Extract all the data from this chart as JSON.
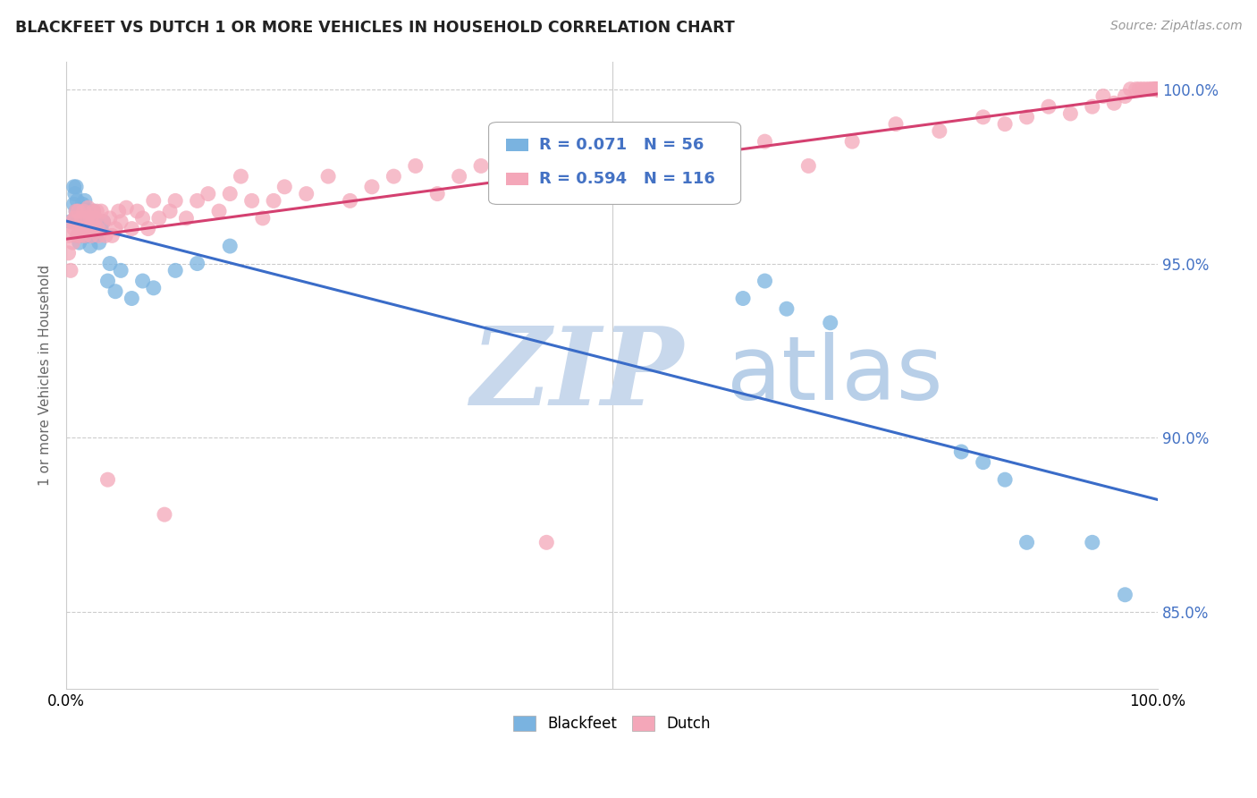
{
  "title": "BLACKFEET VS DUTCH 1 OR MORE VEHICLES IN HOUSEHOLD CORRELATION CHART",
  "source": "Source: ZipAtlas.com",
  "ylabel": "1 or more Vehicles in Household",
  "xlabel": "",
  "xlim": [
    0,
    1
  ],
  "ylim": [
    0.828,
    1.008
  ],
  "yticks": [
    0.85,
    0.9,
    0.95,
    1.0
  ],
  "ytick_labels": [
    "85.0%",
    "90.0%",
    "95.0%",
    "100.0%"
  ],
  "xticks": [
    0.0,
    0.1,
    0.2,
    0.3,
    0.4,
    0.5,
    0.6,
    0.7,
    0.8,
    0.9,
    1.0
  ],
  "xtick_labels": [
    "0.0%",
    "",
    "",
    "",
    "",
    "",
    "",
    "",
    "",
    "",
    "100.0%"
  ],
  "legend_labels": [
    "Blackfeet",
    "Dutch"
  ],
  "blackfeet_color": "#7ab3e0",
  "dutch_color": "#f4a7b9",
  "blue_line_color": "#3a6cc8",
  "pink_line_color": "#d44070",
  "R_blackfeet": 0.071,
  "N_blackfeet": 56,
  "R_dutch": 0.594,
  "N_dutch": 116,
  "blackfeet_x": [
    0.004,
    0.007,
    0.007,
    0.008,
    0.009,
    0.009,
    0.01,
    0.01,
    0.011,
    0.011,
    0.012,
    0.013,
    0.013,
    0.014,
    0.014,
    0.015,
    0.015,
    0.016,
    0.017,
    0.017,
    0.018,
    0.018,
    0.019,
    0.019,
    0.02,
    0.021,
    0.022,
    0.023,
    0.024,
    0.025,
    0.026,
    0.027,
    0.028,
    0.03,
    0.032,
    0.034,
    0.038,
    0.04,
    0.045,
    0.05,
    0.06,
    0.07,
    0.08,
    0.1,
    0.12,
    0.15,
    0.62,
    0.64,
    0.66,
    0.7,
    0.82,
    0.84,
    0.86,
    0.88,
    0.94,
    0.97
  ],
  "blackfeet_y": [
    0.962,
    0.972,
    0.967,
    0.97,
    0.965,
    0.972,
    0.962,
    0.968,
    0.958,
    0.963,
    0.956,
    0.962,
    0.958,
    0.965,
    0.96,
    0.962,
    0.967,
    0.96,
    0.968,
    0.965,
    0.958,
    0.963,
    0.958,
    0.965,
    0.96,
    0.962,
    0.955,
    0.962,
    0.958,
    0.965,
    0.96,
    0.958,
    0.962,
    0.956,
    0.96,
    0.962,
    0.945,
    0.95,
    0.942,
    0.948,
    0.94,
    0.945,
    0.943,
    0.948,
    0.95,
    0.955,
    0.94,
    0.945,
    0.937,
    0.933,
    0.896,
    0.893,
    0.888,
    0.87,
    0.87,
    0.855
  ],
  "dutch_x": [
    0.002,
    0.003,
    0.004,
    0.005,
    0.006,
    0.007,
    0.008,
    0.009,
    0.01,
    0.011,
    0.012,
    0.013,
    0.014,
    0.015,
    0.016,
    0.017,
    0.018,
    0.019,
    0.02,
    0.021,
    0.022,
    0.023,
    0.024,
    0.025,
    0.026,
    0.027,
    0.028,
    0.029,
    0.03,
    0.032,
    0.034,
    0.036,
    0.038,
    0.04,
    0.042,
    0.045,
    0.048,
    0.05,
    0.055,
    0.06,
    0.065,
    0.07,
    0.075,
    0.08,
    0.085,
    0.09,
    0.095,
    0.1,
    0.11,
    0.12,
    0.13,
    0.14,
    0.15,
    0.16,
    0.17,
    0.18,
    0.19,
    0.2,
    0.22,
    0.24,
    0.26,
    0.28,
    0.3,
    0.32,
    0.34,
    0.36,
    0.38,
    0.4,
    0.44,
    0.48,
    0.5,
    0.52,
    0.56,
    0.58,
    0.6,
    0.64,
    0.68,
    0.72,
    0.76,
    0.8,
    0.84,
    0.86,
    0.88,
    0.9,
    0.92,
    0.94,
    0.95,
    0.96,
    0.97,
    0.975,
    0.98,
    0.983,
    0.986,
    0.989,
    0.992,
    0.994,
    0.996,
    0.997,
    0.998,
    0.999,
    0.999,
    0.999,
    1.0,
    1.0,
    1.0,
    1.0,
    1.0,
    1.0,
    1.0,
    1.0,
    1.0,
    1.0,
    1.0,
    1.0,
    1.0,
    1.0
  ],
  "dutch_y": [
    0.953,
    0.958,
    0.948,
    0.962,
    0.956,
    0.96,
    0.963,
    0.965,
    0.958,
    0.965,
    0.96,
    0.958,
    0.963,
    0.96,
    0.965,
    0.958,
    0.96,
    0.963,
    0.966,
    0.96,
    0.963,
    0.958,
    0.962,
    0.965,
    0.96,
    0.963,
    0.965,
    0.96,
    0.958,
    0.965,
    0.962,
    0.958,
    0.888,
    0.963,
    0.958,
    0.96,
    0.965,
    0.962,
    0.966,
    0.96,
    0.965,
    0.963,
    0.96,
    0.968,
    0.963,
    0.878,
    0.965,
    0.968,
    0.963,
    0.968,
    0.97,
    0.965,
    0.97,
    0.975,
    0.968,
    0.963,
    0.968,
    0.972,
    0.97,
    0.975,
    0.968,
    0.972,
    0.975,
    0.978,
    0.97,
    0.975,
    0.978,
    0.975,
    0.87,
    0.98,
    0.978,
    0.98,
    0.982,
    0.985,
    0.98,
    0.985,
    0.978,
    0.985,
    0.99,
    0.988,
    0.992,
    0.99,
    0.992,
    0.995,
    0.993,
    0.995,
    0.998,
    0.996,
    0.998,
    1.0,
    1.0,
    1.0,
    1.0,
    1.0,
    1.0,
    1.0,
    1.0,
    1.0,
    1.0,
    1.0,
    1.0,
    1.0,
    1.0,
    1.0,
    1.0,
    1.0,
    1.0,
    1.0,
    1.0,
    1.0,
    1.0,
    1.0,
    1.0,
    1.0,
    1.0,
    1.0
  ],
  "background_color": "#ffffff",
  "grid_color": "#cccccc",
  "watermark_zip": "ZIP",
  "watermark_atlas": "atlas",
  "watermark_color_zip": "#c8d8ec",
  "watermark_color_atlas": "#b8cfe8"
}
